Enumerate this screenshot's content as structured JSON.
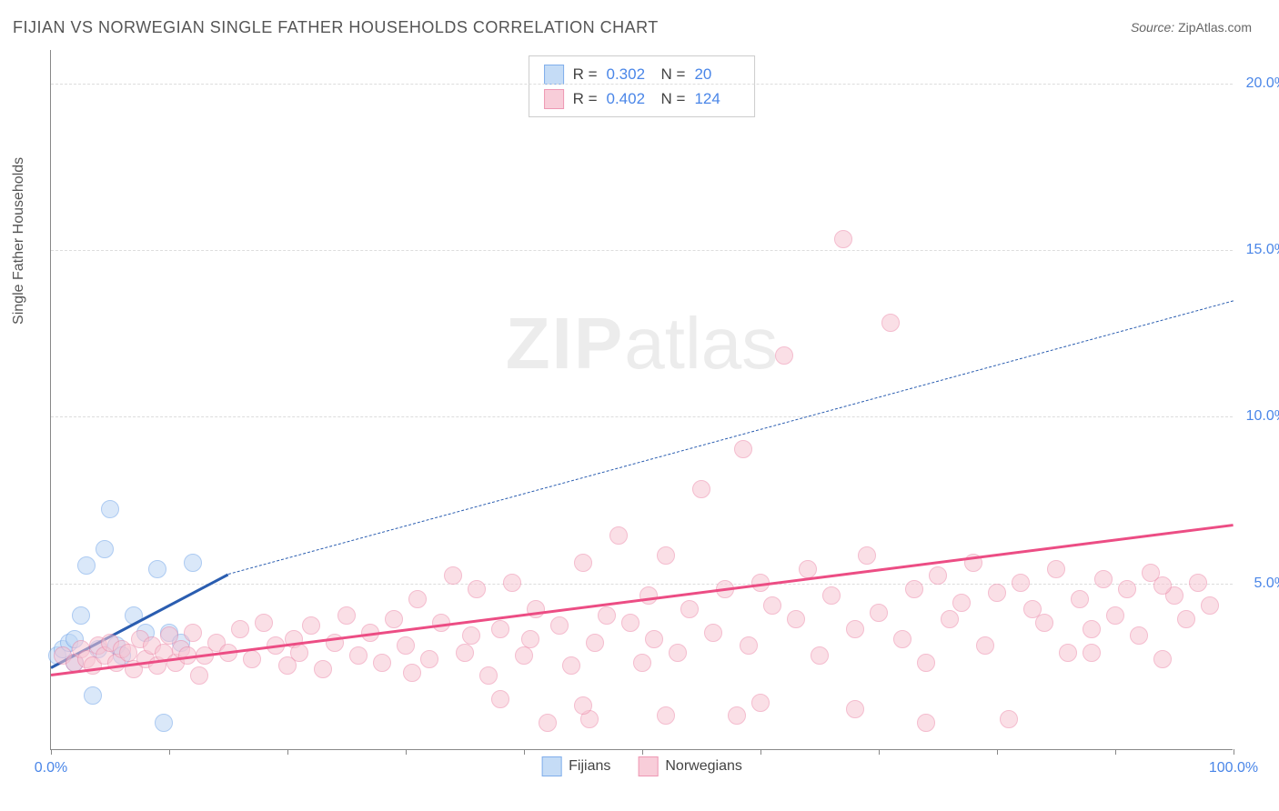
{
  "title": "FIJIAN VS NORWEGIAN SINGLE FATHER HOUSEHOLDS CORRELATION CHART",
  "source_label": "Source:",
  "source_value": "ZipAtlas.com",
  "y_axis_label": "Single Father Households",
  "watermark_bold": "ZIP",
  "watermark_light": "atlas",
  "chart": {
    "type": "scatter",
    "background_color": "#ffffff",
    "grid_color": "#dddddd",
    "axis_color": "#888888",
    "text_color": "#555555",
    "value_color": "#4a86e8",
    "xlim": [
      0,
      100
    ],
    "ylim": [
      0,
      21
    ],
    "x_ticks": [
      0,
      10,
      20,
      30,
      40,
      50,
      60,
      70,
      80,
      90,
      100
    ],
    "x_tick_labels": {
      "0": "0.0%",
      "100": "100.0%"
    },
    "y_ticks": [
      5,
      10,
      15,
      20
    ],
    "y_tick_labels": {
      "5": "5.0%",
      "10": "10.0%",
      "15": "15.0%",
      "20": "20.0%"
    },
    "point_radius": 10,
    "series": [
      {
        "name": "Fijians",
        "fill": "#bcd6f5",
        "stroke": "#6aa0e8",
        "fill_opacity": 0.55,
        "r_label": "R =",
        "r_value": "0.302",
        "n_label": "N =",
        "n_value": "20",
        "trend": {
          "x1": 0,
          "y1": 2.5,
          "x2": 15,
          "y2": 5.3,
          "color": "#2a5db0",
          "width": 3,
          "dash": false
        },
        "trend_ext": {
          "x1": 15,
          "y1": 5.3,
          "x2": 100,
          "y2": 13.5,
          "color": "#2a5db0",
          "width": 1.5,
          "dash": true
        },
        "points": [
          [
            0.5,
            2.8
          ],
          [
            1,
            3.0
          ],
          [
            1.5,
            3.2
          ],
          [
            2,
            2.6
          ],
          [
            2,
            3.3
          ],
          [
            2.5,
            4.0
          ],
          [
            3,
            5.5
          ],
          [
            3.5,
            1.6
          ],
          [
            4,
            3.0
          ],
          [
            4.5,
            6.0
          ],
          [
            5,
            7.2
          ],
          [
            5.5,
            3.1
          ],
          [
            6,
            2.8
          ],
          [
            7,
            4.0
          ],
          [
            8,
            3.5
          ],
          [
            9,
            5.4
          ],
          [
            9.5,
            0.8
          ],
          [
            10,
            3.5
          ],
          [
            11,
            3.2
          ],
          [
            12,
            5.6
          ]
        ]
      },
      {
        "name": "Norwegians",
        "fill": "#f7c5d3",
        "stroke": "#ec87a7",
        "fill_opacity": 0.55,
        "r_label": "R =",
        "r_value": "0.402",
        "n_label": "N =",
        "n_value": "124",
        "trend": {
          "x1": 0,
          "y1": 2.3,
          "x2": 100,
          "y2": 6.8,
          "color": "#ec4d84",
          "width": 3,
          "dash": false
        },
        "points": [
          [
            1,
            2.8
          ],
          [
            2,
            2.6
          ],
          [
            2.5,
            3.0
          ],
          [
            3,
            2.7
          ],
          [
            3.5,
            2.5
          ],
          [
            4,
            3.1
          ],
          [
            4.5,
            2.8
          ],
          [
            5,
            3.2
          ],
          [
            5.5,
            2.6
          ],
          [
            6,
            3.0
          ],
          [
            6.5,
            2.9
          ],
          [
            7,
            2.4
          ],
          [
            7.5,
            3.3
          ],
          [
            8,
            2.7
          ],
          [
            8.5,
            3.1
          ],
          [
            9,
            2.5
          ],
          [
            9.5,
            2.9
          ],
          [
            10,
            3.4
          ],
          [
            10.5,
            2.6
          ],
          [
            11,
            3.0
          ],
          [
            11.5,
            2.8
          ],
          [
            12,
            3.5
          ],
          [
            12.5,
            2.2
          ],
          [
            13,
            2.8
          ],
          [
            14,
            3.2
          ],
          [
            15,
            2.9
          ],
          [
            16,
            3.6
          ],
          [
            17,
            2.7
          ],
          [
            18,
            3.8
          ],
          [
            19,
            3.1
          ],
          [
            20,
            2.5
          ],
          [
            20.5,
            3.3
          ],
          [
            21,
            2.9
          ],
          [
            22,
            3.7
          ],
          [
            23,
            2.4
          ],
          [
            24,
            3.2
          ],
          [
            25,
            4.0
          ],
          [
            26,
            2.8
          ],
          [
            27,
            3.5
          ],
          [
            28,
            2.6
          ],
          [
            29,
            3.9
          ],
          [
            30,
            3.1
          ],
          [
            30.5,
            2.3
          ],
          [
            31,
            4.5
          ],
          [
            32,
            2.7
          ],
          [
            33,
            3.8
          ],
          [
            34,
            5.2
          ],
          [
            35,
            2.9
          ],
          [
            35.5,
            3.4
          ],
          [
            36,
            4.8
          ],
          [
            37,
            2.2
          ],
          [
            38,
            3.6
          ],
          [
            39,
            5.0
          ],
          [
            40,
            2.8
          ],
          [
            40.5,
            3.3
          ],
          [
            41,
            4.2
          ],
          [
            42,
            0.8
          ],
          [
            43,
            3.7
          ],
          [
            44,
            2.5
          ],
          [
            45,
            5.6
          ],
          [
            45.5,
            0.9
          ],
          [
            46,
            3.2
          ],
          [
            47,
            4.0
          ],
          [
            48,
            6.4
          ],
          [
            49,
            3.8
          ],
          [
            50,
            2.6
          ],
          [
            50.5,
            4.6
          ],
          [
            51,
            3.3
          ],
          [
            52,
            5.8
          ],
          [
            53,
            2.9
          ],
          [
            54,
            4.2
          ],
          [
            55,
            7.8
          ],
          [
            56,
            3.5
          ],
          [
            57,
            4.8
          ],
          [
            58,
            1.0
          ],
          [
            58.5,
            9.0
          ],
          [
            59,
            3.1
          ],
          [
            60,
            5.0
          ],
          [
            61,
            4.3
          ],
          [
            62,
            11.8
          ],
          [
            63,
            3.9
          ],
          [
            64,
            5.4
          ],
          [
            65,
            2.8
          ],
          [
            66,
            4.6
          ],
          [
            67,
            15.3
          ],
          [
            68,
            3.6
          ],
          [
            69,
            5.8
          ],
          [
            70,
            4.1
          ],
          [
            71,
            12.8
          ],
          [
            72,
            3.3
          ],
          [
            73,
            4.8
          ],
          [
            74,
            2.6
          ],
          [
            75,
            5.2
          ],
          [
            76,
            3.9
          ],
          [
            77,
            4.4
          ],
          [
            78,
            5.6
          ],
          [
            79,
            3.1
          ],
          [
            80,
            4.7
          ],
          [
            81,
            0.9
          ],
          [
            82,
            5.0
          ],
          [
            83,
            4.2
          ],
          [
            84,
            3.8
          ],
          [
            85,
            5.4
          ],
          [
            86,
            2.9
          ],
          [
            87,
            4.5
          ],
          [
            88,
            3.6
          ],
          [
            89,
            5.1
          ],
          [
            90,
            4.0
          ],
          [
            91,
            4.8
          ],
          [
            92,
            3.4
          ],
          [
            93,
            5.3
          ],
          [
            94,
            2.7
          ],
          [
            95,
            4.6
          ],
          [
            96,
            3.9
          ],
          [
            97,
            5.0
          ],
          [
            98,
            4.3
          ],
          [
            74,
            0.8
          ],
          [
            68,
            1.2
          ],
          [
            52,
            1.0
          ],
          [
            45,
            1.3
          ],
          [
            38,
            1.5
          ],
          [
            60,
            1.4
          ],
          [
            88,
            2.9
          ],
          [
            94,
            4.9
          ]
        ]
      }
    ]
  }
}
